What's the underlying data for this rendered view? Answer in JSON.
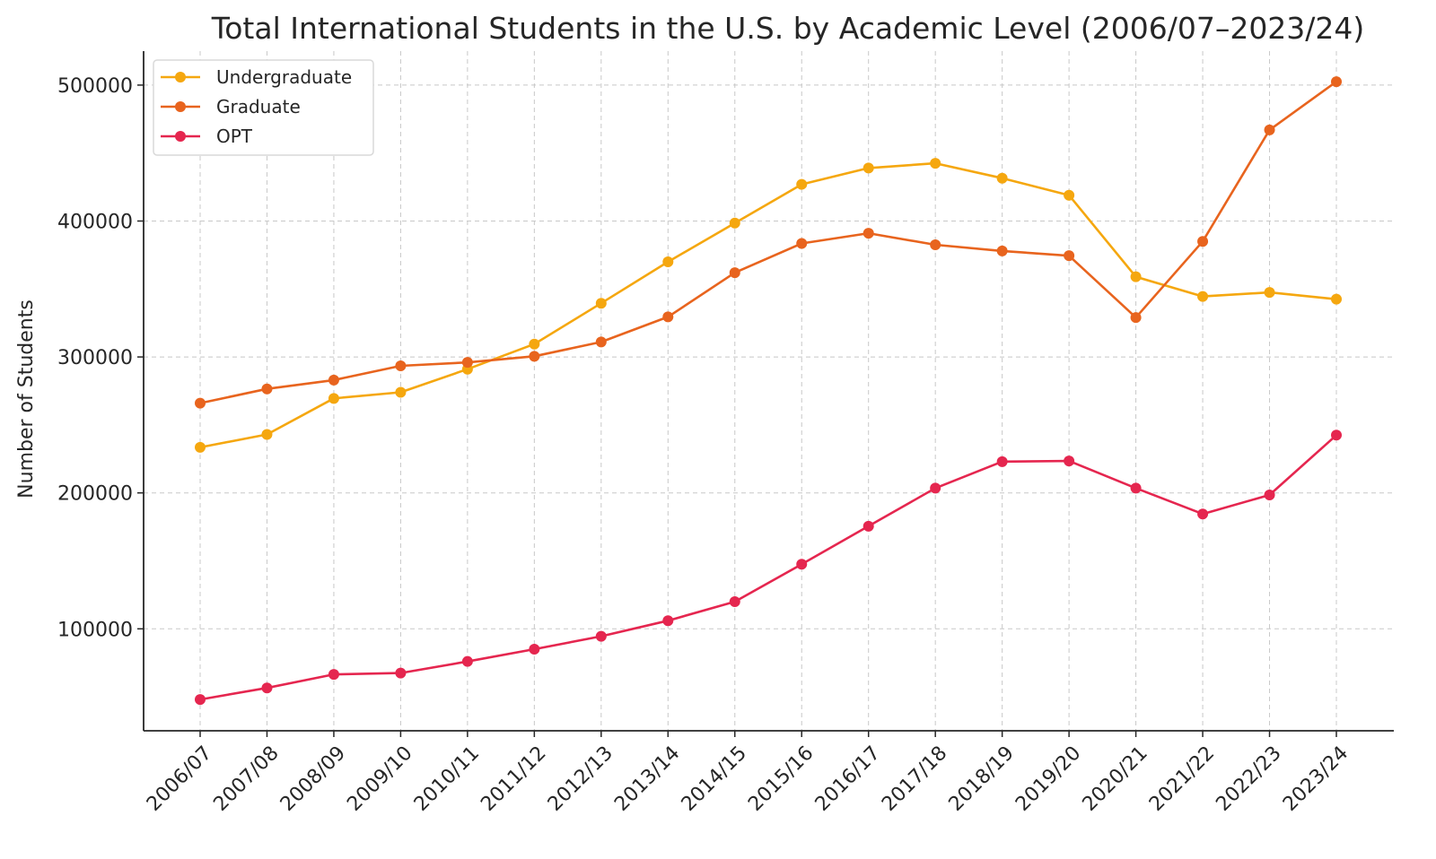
{
  "chart_data": {
    "type": "line",
    "title": "Total International Students in the U.S. by Academic Level (2006/07–2023/24)",
    "xlabel": "",
    "ylabel": "Number of Students",
    "categories": [
      "2006/07",
      "2007/08",
      "2008/09",
      "2009/10",
      "2010/11",
      "2011/12",
      "2012/13",
      "2013/14",
      "2014/15",
      "2015/16",
      "2016/17",
      "2017/18",
      "2018/19",
      "2019/20",
      "2020/21",
      "2021/22",
      "2022/23",
      "2023/24"
    ],
    "yticks": [
      100000,
      200000,
      300000,
      400000,
      500000
    ],
    "ylim": [
      25000,
      525000
    ],
    "grid": true,
    "legend_position": "top-left",
    "series": [
      {
        "name": "Undergraduate",
        "color": "#f5a70f",
        "values": [
          233500,
          243000,
          269500,
          274000,
          291000,
          309500,
          339500,
          370000,
          398500,
          427000,
          439000,
          442500,
          431500,
          419000,
          359000,
          344500,
          347500,
          342500
        ]
      },
      {
        "name": "Graduate",
        "color": "#e8641e",
        "values": [
          266000,
          276500,
          283000,
          293500,
          296000,
          300500,
          311000,
          329500,
          362000,
          383500,
          391000,
          382500,
          378000,
          374500,
          329000,
          385000,
          467000,
          502500
        ]
      },
      {
        "name": "OPT",
        "color": "#e5264f",
        "values": [
          48000,
          56500,
          66500,
          67500,
          76000,
          85000,
          94500,
          106000,
          120000,
          147500,
          175500,
          203500,
          223000,
          223500,
          203500,
          184500,
          198500,
          242500
        ]
      }
    ]
  }
}
